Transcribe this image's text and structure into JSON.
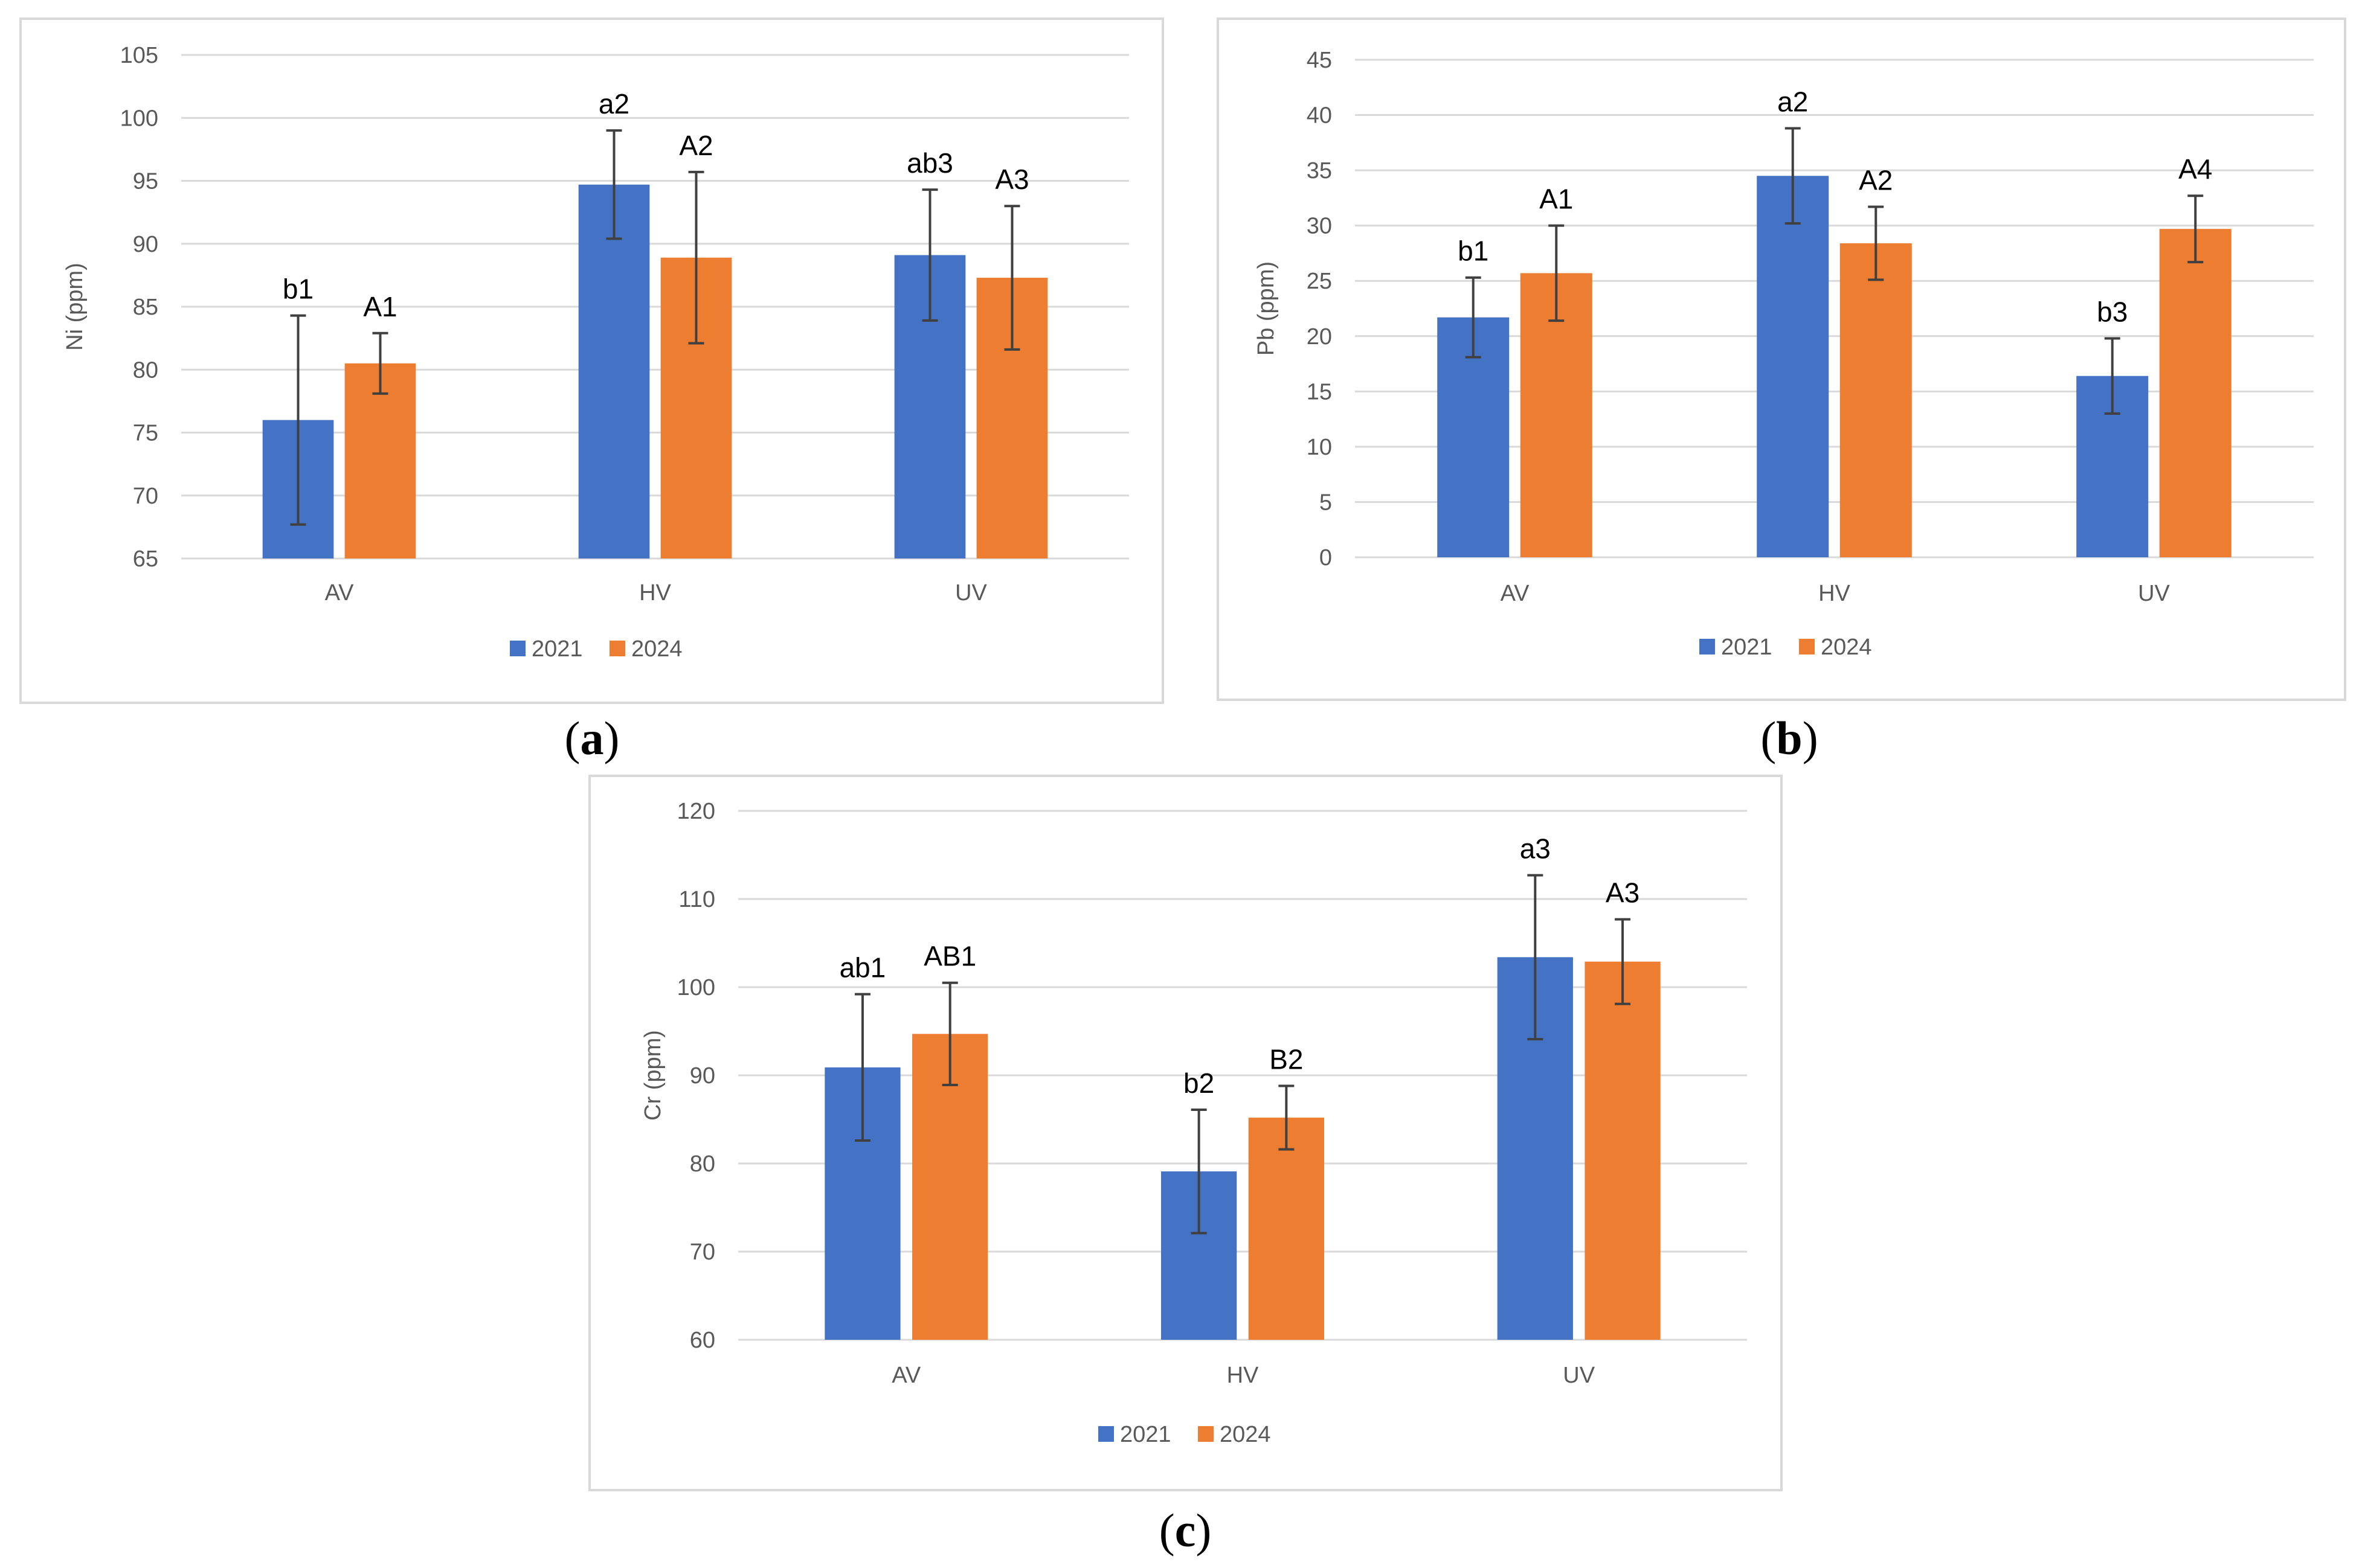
{
  "colors": {
    "series_2021": "#4472c4",
    "series_2024": "#ed7d31",
    "grid": "#d9d9d9",
    "axis_text": "#595959",
    "error_bar": "#404040"
  },
  "chart_data": [
    {
      "id": "a",
      "type": "bar",
      "caption": "a",
      "ylabel": "Ni (ppm)",
      "xlabel": "",
      "ylim": [
        65,
        105
      ],
      "yticks": [
        65,
        70,
        75,
        80,
        85,
        90,
        95,
        100,
        105
      ],
      "grid": true,
      "legend_position": "bottom",
      "categories": [
        "AV",
        "HV",
        "UV"
      ],
      "series": [
        {
          "name": "2021",
          "values": [
            76.0,
            94.7,
            89.1
          ],
          "errors": [
            8.3,
            4.3,
            5.2
          ],
          "labels": [
            "b1",
            "a2",
            "ab3"
          ]
        },
        {
          "name": "2024",
          "values": [
            80.5,
            88.9,
            87.3
          ],
          "errors": [
            2.4,
            6.8,
            5.7
          ],
          "labels": [
            "A1",
            "A2",
            "A3"
          ]
        }
      ]
    },
    {
      "id": "b",
      "type": "bar",
      "caption": "b",
      "ylabel": "Pb (ppm)",
      "xlabel": "",
      "ylim": [
        0,
        45
      ],
      "yticks": [
        0,
        5,
        10,
        15,
        20,
        25,
        30,
        35,
        40,
        45
      ],
      "grid": true,
      "legend_position": "bottom",
      "categories": [
        "AV",
        "HV",
        "UV"
      ],
      "series": [
        {
          "name": "2021",
          "values": [
            21.7,
            34.5,
            16.4
          ],
          "errors": [
            3.6,
            4.3,
            3.4
          ],
          "labels": [
            "b1",
            "a2",
            "b3"
          ]
        },
        {
          "name": "2024",
          "values": [
            25.7,
            28.4,
            29.7
          ],
          "errors": [
            4.3,
            3.3,
            3.0
          ],
          "labels": [
            "A1",
            "A2",
            "A4"
          ]
        }
      ]
    },
    {
      "id": "c",
      "type": "bar",
      "caption": "c",
      "ylabel": "Cr (ppm)",
      "xlabel": "",
      "ylim": [
        60,
        120
      ],
      "yticks": [
        60,
        70,
        80,
        90,
        100,
        110,
        120
      ],
      "grid": true,
      "legend_position": "bottom",
      "categories": [
        "AV",
        "HV",
        "UV"
      ],
      "series": [
        {
          "name": "2021",
          "values": [
            90.9,
            79.1,
            103.4
          ],
          "errors": [
            8.3,
            7.0,
            9.3
          ],
          "labels": [
            "ab1",
            "b2",
            "a3"
          ]
        },
        {
          "name": "2024",
          "values": [
            94.7,
            85.2,
            102.9
          ],
          "errors": [
            5.8,
            3.6,
            4.8
          ],
          "labels": [
            "AB1",
            "B2",
            "A3"
          ]
        }
      ]
    }
  ]
}
